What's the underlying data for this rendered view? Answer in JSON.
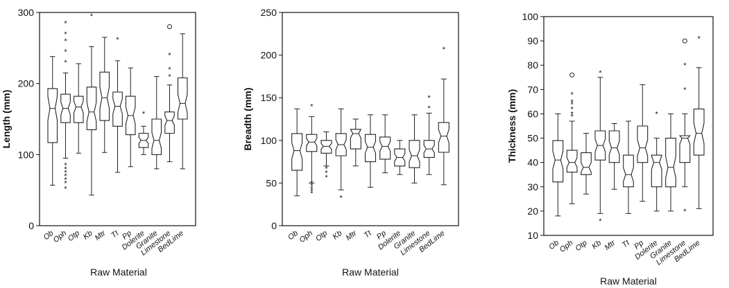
{
  "chart_data": [
    {
      "type": "boxplot",
      "xlabel": "Raw Material",
      "ylabel": "Length (mm)",
      "ylim": [
        0,
        300
      ],
      "yticks": [
        0,
        100,
        200,
        300
      ],
      "grid": false,
      "notched": true,
      "categories": [
        "Ob",
        "Oph",
        "Otp",
        "Kb",
        "Mtr",
        "Tt",
        "Pp",
        "Dolerite",
        "Granite",
        "Limestone",
        "BedLime"
      ],
      "boxes": [
        {
          "whislo": 57,
          "q1": 117,
          "med": 165,
          "q3": 193,
          "whishi": 238,
          "fliers": []
        },
        {
          "whislo": 95,
          "q1": 145,
          "med": 165,
          "q3": 185,
          "whishi": 215,
          "fliers": [
            85,
            80,
            75,
            70,
            65,
            60,
            52,
            230,
            245,
            260,
            270,
            285
          ]
        },
        {
          "whislo": 102,
          "q1": 145,
          "med": 167,
          "q3": 182,
          "whishi": 228,
          "fliers": []
        },
        {
          "whislo": 43,
          "q1": 135,
          "med": 160,
          "q3": 195,
          "whishi": 252,
          "fliers": [
            295
          ]
        },
        {
          "whislo": 103,
          "q1": 148,
          "med": 180,
          "q3": 216,
          "whishi": 265,
          "fliers": []
        },
        {
          "whislo": 75,
          "q1": 140,
          "med": 168,
          "q3": 188,
          "whishi": 232,
          "fliers": [
            262
          ]
        },
        {
          "whislo": 83,
          "q1": 128,
          "med": 155,
          "q3": 182,
          "whishi": 222,
          "fliers": []
        },
        {
          "whislo": 100,
          "q1": 110,
          "med": 120,
          "q3": 130,
          "whishi": 140,
          "fliers": [
            158
          ]
        },
        {
          "whislo": 80,
          "q1": 100,
          "med": 120,
          "q3": 150,
          "whishi": 210,
          "fliers": []
        },
        {
          "whislo": 90,
          "q1": 130,
          "med": 148,
          "q3": 160,
          "whishi": 198,
          "fliers": [
            210,
            220,
            240
          ]
        },
        {
          "whislo": 80,
          "q1": 150,
          "med": 172,
          "q3": 208,
          "whishi": 270,
          "fliers": []
        }
      ],
      "outliers_circle": [
        {
          "category": "Limestone",
          "value": 280
        }
      ]
    },
    {
      "type": "boxplot",
      "xlabel": "Raw Material",
      "ylabel": "Breadth (mm)",
      "ylim": [
        0,
        250
      ],
      "yticks": [
        0,
        50,
        100,
        150,
        200,
        250
      ],
      "grid": false,
      "notched": true,
      "categories": [
        "Ob",
        "Oph",
        "Otp",
        "Kb",
        "Mtr",
        "Tt",
        "Pp",
        "Dolerite",
        "Granite",
        "Limestone",
        "BedLime"
      ],
      "boxes": [
        {
          "whislo": 35,
          "q1": 65,
          "med": 88,
          "q3": 108,
          "whishi": 137,
          "fliers": []
        },
        {
          "whislo": 50,
          "q1": 87,
          "med": 98,
          "q3": 107,
          "whishi": 128,
          "fliers": [
            38,
            41,
            44,
            47,
            50,
            140
          ]
        },
        {
          "whislo": 70,
          "q1": 85,
          "med": 93,
          "q3": 100,
          "whishi": 110,
          "fliers": [
            57,
            62,
            67
          ]
        },
        {
          "whislo": 42,
          "q1": 82,
          "med": 95,
          "q3": 108,
          "whishi": 137,
          "fliers": [
            33
          ]
        },
        {
          "whislo": 70,
          "q1": 90,
          "med": 108,
          "q3": 113,
          "whishi": 125,
          "fliers": []
        },
        {
          "whislo": 45,
          "q1": 75,
          "med": 92,
          "q3": 107,
          "whishi": 130,
          "fliers": []
        },
        {
          "whislo": 62,
          "q1": 78,
          "med": 93,
          "q3": 104,
          "whishi": 130,
          "fliers": []
        },
        {
          "whislo": 60,
          "q1": 70,
          "med": 80,
          "q3": 90,
          "whishi": 100,
          "fliers": []
        },
        {
          "whislo": 50,
          "q1": 68,
          "med": 82,
          "q3": 100,
          "whishi": 130,
          "fliers": []
        },
        {
          "whislo": 60,
          "q1": 80,
          "med": 90,
          "q3": 100,
          "whishi": 132,
          "fliers": [
            138,
            150
          ]
        },
        {
          "whislo": 48,
          "q1": 86,
          "med": 105,
          "q3": 121,
          "whishi": 172,
          "fliers": [
            207
          ]
        }
      ]
    },
    {
      "type": "boxplot",
      "xlabel": "Raw Material",
      "ylabel": "Thickness (mm)",
      "ylim": [
        10,
        100
      ],
      "yticks": [
        10,
        20,
        30,
        40,
        50,
        60,
        70,
        80,
        90,
        100
      ],
      "grid": false,
      "notched": true,
      "categories": [
        "Ob",
        "Oph",
        "Otp",
        "Kb",
        "Mtr",
        "Tt",
        "Pp",
        "Dolerite",
        "Granite",
        "Limestone",
        "BedLime"
      ],
      "boxes": [
        {
          "whislo": 18,
          "q1": 32,
          "med": 41,
          "q3": 49,
          "whishi": 60,
          "fliers": []
        },
        {
          "whislo": 23,
          "q1": 36,
          "med": 40,
          "q3": 45,
          "whishi": 57,
          "fliers": [
            59,
            60,
            62,
            64,
            65,
            68
          ]
        },
        {
          "whislo": 27,
          "q1": 35,
          "med": 38,
          "q3": 44,
          "whishi": 52,
          "fliers": []
        },
        {
          "whislo": 19,
          "q1": 41,
          "med": 47,
          "q3": 53,
          "whishi": 75,
          "fliers": [
            16,
            77
          ]
        },
        {
          "whislo": 29,
          "q1": 40,
          "med": 46,
          "q3": 53,
          "whishi": 56,
          "fliers": []
        },
        {
          "whislo": 19,
          "q1": 30,
          "med": 35,
          "q3": 43,
          "whishi": 57,
          "fliers": []
        },
        {
          "whislo": 24,
          "q1": 40,
          "med": 46,
          "q3": 55,
          "whishi": 72,
          "fliers": []
        },
        {
          "whislo": 20,
          "q1": 30,
          "med": 40,
          "q3": 43,
          "whishi": 50,
          "fliers": [
            60
          ]
        },
        {
          "whislo": 20,
          "q1": 30,
          "med": 38,
          "q3": 50,
          "whishi": 60,
          "fliers": []
        },
        {
          "whislo": 30,
          "q1": 40,
          "med": 50,
          "q3": 51,
          "whishi": 60,
          "fliers": [
            20,
            70,
            80
          ]
        },
        {
          "whislo": 21,
          "q1": 43,
          "med": 52,
          "q3": 62,
          "whishi": 79,
          "fliers": [
            91
          ]
        }
      ],
      "outliers_circle": [
        {
          "category": "Oph",
          "value": 76
        },
        {
          "category": "Limestone",
          "value": 90
        }
      ]
    }
  ]
}
